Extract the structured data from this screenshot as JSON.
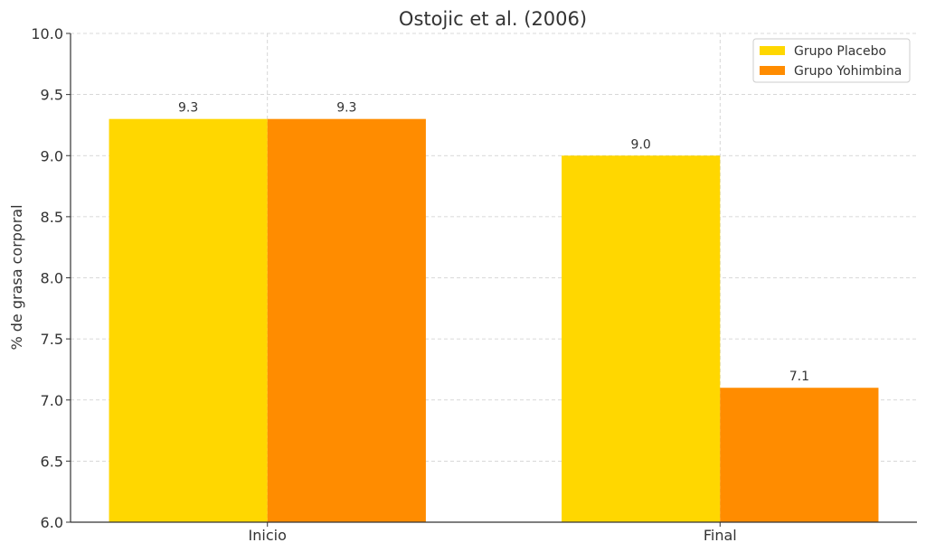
{
  "chart_data": {
    "type": "bar",
    "title": "Ostojic et al. (2006)",
    "xlabel": "",
    "ylabel": "% de grasa corporal",
    "categories": [
      "Inicio",
      "Final"
    ],
    "series": [
      {
        "name": "Grupo Placebo",
        "values": [
          9.3,
          9.0
        ],
        "value_labels": [
          "9.3",
          "9.0"
        ],
        "color": "#FFD700"
      },
      {
        "name": "Grupo Yohimbina",
        "values": [
          9.3,
          7.1
        ],
        "value_labels": [
          "9.3",
          "7.1"
        ],
        "color": "#FF8C00"
      }
    ],
    "ylim": [
      6.0,
      10.0
    ],
    "yticks": [
      6.0,
      6.5,
      7.0,
      7.5,
      8.0,
      8.5,
      9.0,
      9.5,
      10.0
    ],
    "ytick_labels": [
      "6.0",
      "6.5",
      "7.0",
      "7.5",
      "8.0",
      "8.5",
      "9.0",
      "9.5",
      "10.0"
    ],
    "grid": true,
    "legend_position": "top-right"
  }
}
